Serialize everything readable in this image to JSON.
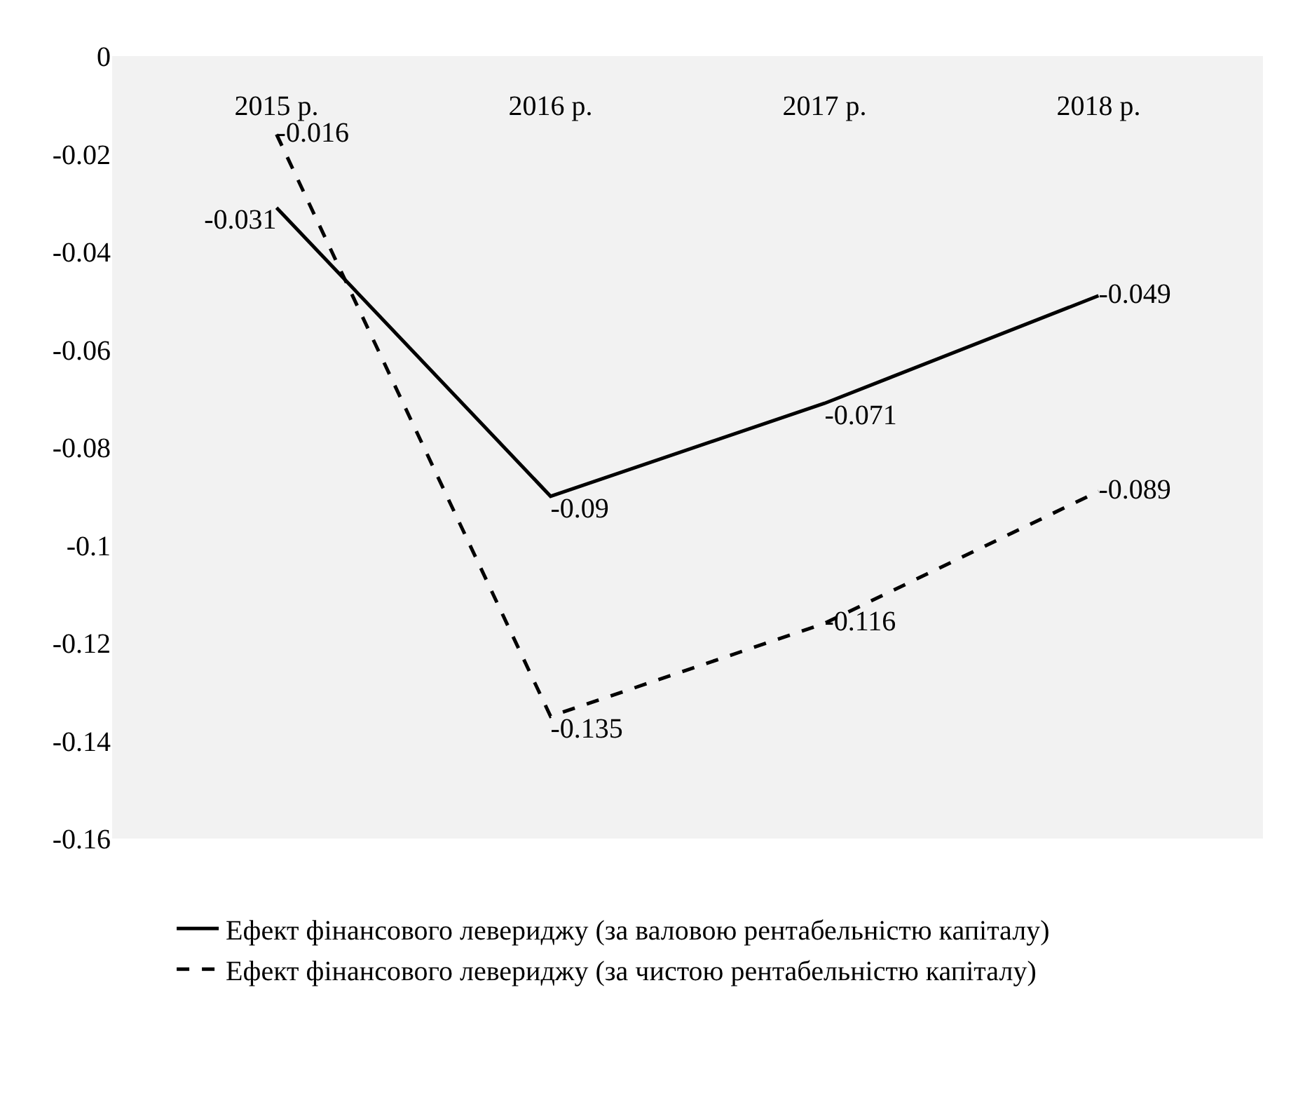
{
  "chart_data": {
    "type": "line",
    "categories": [
      "2015 р.",
      "2016 р.",
      "2017 р.",
      "2018 р."
    ],
    "series": [
      {
        "name": "Ефект фінансового левериджу (за валовою рентабельністю капіталу)",
        "color": "#000000",
        "line_style": "solid",
        "values": [
          -0.031,
          -0.09,
          -0.071,
          -0.049
        ]
      },
      {
        "name": "Ефект фінансового левериджу (за чистою рентабельністю капіталу)",
        "color": "#000000",
        "line_style": "dashed",
        "values": [
          -0.016,
          -0.135,
          -0.116,
          -0.089
        ]
      }
    ],
    "ylim": [
      -0.16,
      0
    ],
    "yticks": [
      0,
      -0.02,
      -0.04,
      -0.06,
      -0.08,
      -0.1,
      -0.12,
      -0.14,
      -0.16
    ],
    "data_labels": true,
    "grid": false,
    "legend": "bottom",
    "marker": "none"
  }
}
